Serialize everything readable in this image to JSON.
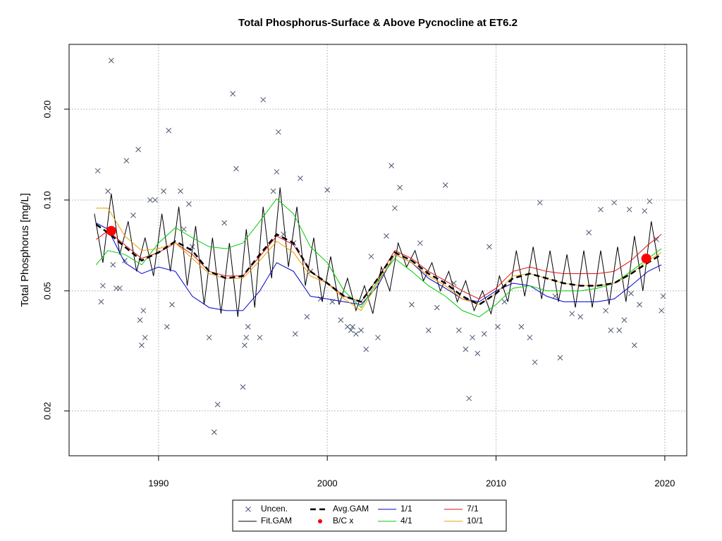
{
  "chart_data": {
    "type": "line",
    "title": "Total Phosphorus-Surface & Above Pycnocline at ET6.2",
    "ylabel": "Total Phosphorus [mg/L]",
    "log_y": true,
    "grid": true,
    "xlim": [
      1984.7,
      2021.3
    ],
    "ylim": [
      0.0142,
      0.328
    ],
    "xticks": [
      1990,
      2000,
      2010,
      2020
    ],
    "yticks": [
      0.02,
      0.05,
      {
        "value": 0.1,
        "label": "0.10"
      },
      {
        "value": 0.2,
        "label": "0.20"
      }
    ],
    "series": [
      {
        "name": "Uncen.",
        "color": "#4a5670",
        "style": "cross",
        "x": [
          1986.4,
          1986.6,
          1986.7,
          1987.0,
          1987.2,
          1987.3,
          1987.5,
          1987.7,
          1988.0,
          1988.1,
          1988.5,
          1988.8,
          1988.9,
          1989.0,
          1989.1,
          1989.2,
          1989.5,
          1989.8,
          1990.3,
          1990.5,
          1990.6,
          1990.8,
          1991.3,
          1991.5,
          1991.8,
          1992.0,
          1993.0,
          1993.3,
          1993.5,
          1993.9,
          1994.4,
          1994.6,
          1995.0,
          1995.1,
          1995.2,
          1995.3,
          1996.0,
          1996.2,
          1996.8,
          1997.0,
          1997.1,
          1997.4,
          1998.0,
          1998.1,
          1998.4,
          1998.8,
          1999.0,
          1999.6,
          2000.0,
          2000.3,
          2000.8,
          2001.2,
          2001.4,
          2001.5,
          2001.7,
          2002.0,
          2002.3,
          2002.6,
          2003.0,
          2003.5,
          2003.8,
          2004.0,
          2004.3,
          2005.0,
          2005.5,
          2006.0,
          2006.5,
          2007.0,
          2007.5,
          2007.8,
          2008.2,
          2008.4,
          2008.6,
          2008.9,
          2009.3,
          2009.6,
          2010.1,
          2010.5,
          2011.5,
          2012.0,
          2012.3,
          2012.6,
          2013.5,
          2013.8,
          2014.5,
          2015.0,
          2015.5,
          2016.2,
          2016.5,
          2016.8,
          2017.0,
          2017.3,
          2017.6,
          2017.9,
          2018.0,
          2018.2,
          2018.5,
          2018.8,
          2019.1,
          2019.5,
          2019.8,
          2019.9
        ],
        "values": [
          0.125,
          0.046,
          0.052,
          0.107,
          0.29,
          0.061,
          0.051,
          0.051,
          0.063,
          0.135,
          0.089,
          0.147,
          0.04,
          0.033,
          0.043,
          0.035,
          0.1,
          0.1,
          0.107,
          0.038,
          0.17,
          0.045,
          0.107,
          0.08,
          0.097,
          0.07,
          0.035,
          0.017,
          0.021,
          0.084,
          0.225,
          0.127,
          0.024,
          0.033,
          0.035,
          0.038,
          0.035,
          0.215,
          0.107,
          0.124,
          0.168,
          0.077,
          0.072,
          0.036,
          0.118,
          0.041,
          0.058,
          0.047,
          0.108,
          0.046,
          0.04,
          0.038,
          0.037,
          0.038,
          0.036,
          0.037,
          0.032,
          0.065,
          0.035,
          0.076,
          0.13,
          0.094,
          0.11,
          0.045,
          0.072,
          0.037,
          0.044,
          0.112,
          0.053,
          0.037,
          0.032,
          0.022,
          0.035,
          0.031,
          0.036,
          0.07,
          0.038,
          0.046,
          0.038,
          0.035,
          0.029,
          0.098,
          0.048,
          0.03,
          0.042,
          0.041,
          0.078,
          0.093,
          0.043,
          0.037,
          0.098,
          0.037,
          0.04,
          0.093,
          0.049,
          0.033,
          0.045,
          0.092,
          0.099,
          0.074,
          0.043,
          0.048
        ]
      },
      {
        "name": "Fit.GAM",
        "color": "#000000",
        "style": "line",
        "x": [
          1986.2,
          1986.7,
          1987.2,
          1987.7,
          1988.2,
          1988.7,
          1989.2,
          1989.7,
          1990.2,
          1990.7,
          1991.2,
          1991.7,
          1992.2,
          1992.7,
          1993.2,
          1993.7,
          1994.2,
          1994.7,
          1995.2,
          1995.7,
          1996.2,
          1996.7,
          1997.2,
          1997.7,
          1998.2,
          1998.7,
          1999.2,
          1999.7,
          2000.2,
          2000.7,
          2001.2,
          2001.7,
          2002.2,
          2002.7,
          2003.2,
          2003.7,
          2004.2,
          2004.7,
          2005.2,
          2005.7,
          2006.2,
          2006.7,
          2007.2,
          2007.7,
          2008.2,
          2008.7,
          2009.2,
          2009.7,
          2010.2,
          2010.7,
          2011.2,
          2011.7,
          2012.2,
          2012.7,
          2013.2,
          2013.7,
          2014.2,
          2014.7,
          2015.2,
          2015.7,
          2016.2,
          2016.7,
          2017.2,
          2017.7,
          2018.2,
          2018.7,
          2019.2,
          2019.7
        ],
        "values": [
          0.09,
          0.062,
          0.105,
          0.066,
          0.085,
          0.058,
          0.075,
          0.056,
          0.09,
          0.058,
          0.095,
          0.052,
          0.082,
          0.045,
          0.075,
          0.042,
          0.072,
          0.041,
          0.08,
          0.044,
          0.095,
          0.055,
          0.11,
          0.06,
          0.095,
          0.052,
          0.075,
          0.046,
          0.065,
          0.045,
          0.055,
          0.043,
          0.052,
          0.042,
          0.06,
          0.05,
          0.072,
          0.06,
          0.068,
          0.054,
          0.062,
          0.05,
          0.058,
          0.046,
          0.054,
          0.043,
          0.05,
          0.042,
          0.056,
          0.046,
          0.068,
          0.048,
          0.07,
          0.047,
          0.068,
          0.046,
          0.066,
          0.044,
          0.068,
          0.044,
          0.068,
          0.045,
          0.07,
          0.046,
          0.076,
          0.05,
          0.085,
          0.058
        ]
      },
      {
        "name": "Avg.GAM",
        "color": "#000000",
        "style": "dashed",
        "x": [
          1986.3,
          1987,
          1988,
          1989,
          1990,
          1991,
          1992,
          1993,
          1994,
          1995,
          1996,
          1997,
          1998,
          1999,
          2000,
          2001,
          2002,
          2003,
          2004,
          2005,
          2006,
          2007,
          2008,
          2009,
          2010,
          2011,
          2012,
          2013,
          2014,
          2015,
          2016,
          2017,
          2018,
          2019,
          2019.8
        ],
        "values": [
          0.083,
          0.078,
          0.07,
          0.063,
          0.067,
          0.073,
          0.068,
          0.058,
          0.055,
          0.056,
          0.066,
          0.077,
          0.072,
          0.058,
          0.053,
          0.048,
          0.046,
          0.055,
          0.067,
          0.063,
          0.057,
          0.053,
          0.048,
          0.045,
          0.049,
          0.055,
          0.057,
          0.055,
          0.053,
          0.052,
          0.052,
          0.053,
          0.057,
          0.062,
          0.066
        ]
      },
      {
        "name": "B/C x",
        "color": "#ff0000",
        "style": "dot",
        "x": [
          1987.2,
          2018.9
        ],
        "values": [
          0.079,
          0.064
        ]
      },
      {
        "name": "1/1",
        "color": "#0000cd",
        "style": "line",
        "x": [
          1986.3,
          1987,
          1988,
          1989,
          1990,
          1991,
          1992,
          1993,
          1994,
          1995,
          1996,
          1997,
          1998,
          1999,
          2000,
          2001,
          2002,
          2003,
          2004,
          2005,
          2006,
          2007,
          2008,
          2009,
          2010,
          2011,
          2012,
          2013,
          2014,
          2015,
          2016,
          2017,
          2018,
          2019,
          2019.8
        ],
        "values": [
          0.084,
          0.08,
          0.062,
          0.057,
          0.06,
          0.058,
          0.048,
          0.044,
          0.043,
          0.043,
          0.05,
          0.062,
          0.058,
          0.048,
          0.047,
          0.046,
          0.045,
          0.052,
          0.066,
          0.062,
          0.055,
          0.051,
          0.047,
          0.046,
          0.05,
          0.053,
          0.052,
          0.048,
          0.046,
          0.046,
          0.046,
          0.047,
          0.052,
          0.058,
          0.061
        ]
      },
      {
        "name": "4/1",
        "color": "#00cc00",
        "style": "line",
        "x": [
          1986.3,
          1987,
          1988,
          1989,
          1990,
          1991,
          1992,
          1993,
          1994,
          1995,
          1996,
          1997,
          1998,
          1999,
          2000,
          2001,
          2002,
          2003,
          2004,
          2005,
          2006,
          2007,
          2008,
          2009,
          2010,
          2011,
          2012,
          2013,
          2014,
          2015,
          2016,
          2017,
          2018,
          2019,
          2019.8
        ],
        "values": [
          0.061,
          0.068,
          0.066,
          0.061,
          0.072,
          0.081,
          0.075,
          0.07,
          0.069,
          0.072,
          0.085,
          0.101,
          0.09,
          0.07,
          0.062,
          0.05,
          0.044,
          0.054,
          0.064,
          0.058,
          0.052,
          0.048,
          0.043,
          0.041,
          0.045,
          0.051,
          0.052,
          0.05,
          0.05,
          0.05,
          0.051,
          0.053,
          0.058,
          0.064,
          0.069
        ]
      },
      {
        "name": "7/1",
        "color": "#dd1111",
        "style": "line",
        "x": [
          1986.3,
          1987,
          1988,
          1989,
          1990,
          1991,
          1992,
          1993,
          1994,
          1995,
          1996,
          1997,
          1998,
          1999,
          2000,
          2001,
          2002,
          2003,
          2004,
          2005,
          2006,
          2007,
          2008,
          2009,
          2010,
          2011,
          2012,
          2013,
          2014,
          2015,
          2016,
          2017,
          2018,
          2019,
          2019.8
        ],
        "values": [
          0.074,
          0.079,
          0.071,
          0.064,
          0.067,
          0.072,
          0.066,
          0.058,
          0.056,
          0.056,
          0.065,
          0.076,
          0.071,
          0.058,
          0.053,
          0.048,
          0.046,
          0.055,
          0.068,
          0.064,
          0.058,
          0.054,
          0.05,
          0.047,
          0.051,
          0.058,
          0.06,
          0.058,
          0.057,
          0.057,
          0.057,
          0.058,
          0.063,
          0.071,
          0.077
        ]
      },
      {
        "name": "10/1",
        "color": "#e8a000",
        "style": "line",
        "x": [
          1986.3,
          1987,
          1988,
          1989,
          1990,
          1991,
          1992,
          1993,
          1994,
          1995,
          1996,
          1997,
          1998,
          1999,
          2000,
          2001,
          2002,
          2003,
          2004,
          2005,
          2006,
          2007,
          2008,
          2009,
          2010,
          2011,
          2012,
          2013,
          2014,
          2015,
          2016,
          2017,
          2018,
          2019,
          2019.8
        ],
        "values": [
          0.094,
          0.094,
          0.076,
          0.068,
          0.069,
          0.072,
          0.064,
          0.057,
          0.055,
          0.055,
          0.063,
          0.073,
          0.067,
          0.056,
          0.053,
          0.047,
          0.043,
          0.053,
          0.066,
          0.062,
          0.056,
          0.052,
          0.047,
          0.045,
          0.049,
          0.056,
          0.057,
          0.055,
          0.053,
          0.052,
          0.052,
          0.053,
          0.057,
          0.063,
          0.067
        ]
      }
    ]
  }
}
